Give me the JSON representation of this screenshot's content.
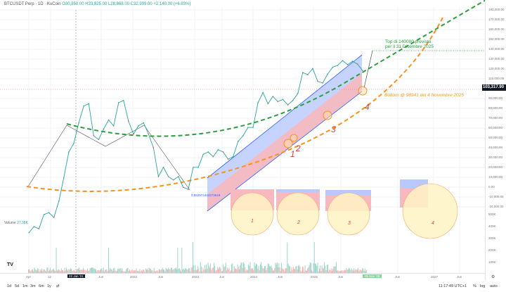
{
  "header": {
    "symbol": "BTCUSDT Perp · 1D · KuCoin",
    "open": "O30,850.00",
    "high": "H33,825.00",
    "low": "L28,868.00",
    "close": "C32,999.00",
    "change": "+2,140.00 (+6.93%)"
  },
  "volume": {
    "label": "Volume",
    "value": "27.38K"
  },
  "price_axis": {
    "labels": [
      "180,000.00",
      "170,000.00",
      "160,000.00",
      "150,000.00",
      "140,000.00",
      "130,000.00",
      "120,000.00",
      "110,000.00",
      "90,000.00",
      "80,000.00",
      "70,000.00",
      "60,000.00",
      "50,000.00",
      "40,000.00",
      "30,000.00",
      "20,000.00",
      "10,000.00",
      "0.00",
      "-10,000.00",
      "-20,000.00"
    ],
    "current_price": "103,317.90",
    "volume_labels": [
      "500K",
      "400K",
      "300K",
      "200K",
      "100K"
    ]
  },
  "time_axis": {
    "labels": [
      "Apr",
      "12",
      "Jun",
      "2022",
      "Jun",
      "2023",
      "Jun",
      "2024",
      "Jun",
      "2025",
      "Jun",
      "Jun",
      "2027",
      "Jun"
    ],
    "crosshair_date": "22 Jan '21",
    "current_date": "05 Nov '25"
  },
  "annotations": {
    "top_line1": "Top di 140000 previsto",
    "top_line2": "per il 31 Dicembre 2025",
    "bottom": "Bottom @ 98941 del 4 Novembre 2025",
    "fib_value": "0.952974444273618",
    "waves": [
      "1",
      "2",
      "3",
      "4"
    ],
    "inset_labels": [
      "1",
      "2",
      "3",
      "4"
    ]
  },
  "toolbar": {
    "ranges": [
      "1d",
      "5d",
      "1m",
      "3m",
      "6m",
      "1y"
    ],
    "time": "11:17:49 UTC+1",
    "percent": "%",
    "log": "log",
    "auto": "auto"
  },
  "colors": {
    "up": "#26a69a",
    "down": "#ef5350",
    "green_curve": "#2e9e3e",
    "orange_curve": "#f7931a",
    "channel_blue": "#2962ff",
    "wave_label": "#e53935"
  },
  "chart_data": {
    "type": "line",
    "series": [
      {
        "x": [
          "2020-04",
          "2020-05",
          "2020-06",
          "2020-07",
          "2020-08",
          "2020-09",
          "2020-10",
          "2020-11",
          "2020-12",
          "2021-01",
          "2021-02",
          "2021-03",
          "2021-04",
          "2021-05",
          "2021-06",
          "2021-07",
          "2021-08",
          "2021-09",
          "2021-10",
          "2021-11",
          "2021-12",
          "2022-01",
          "2022-02",
          "2022-03",
          "2022-04",
          "2022-05",
          "2022-06",
          "2022-07",
          "2022-08",
          "2022-09",
          "2022-10",
          "2022-11",
          "2022-12",
          "2023-01",
          "2023-02",
          "2023-03",
          "2023-04",
          "2023-05",
          "2023-06",
          "2023-07",
          "2023-08",
          "2023-09",
          "2023-10",
          "2023-11",
          "2023-12",
          "2024-01",
          "2024-02",
          "2024-03",
          "2024-04",
          "2024-05",
          "2024-06",
          "2024-07",
          "2024-08",
          "2024-09",
          "2024-10",
          "2024-11",
          "2024-12",
          "2025-01",
          "2025-02",
          "2025-03",
          "2025-04",
          "2025-05",
          "2025-06",
          "2025-07",
          "2025-08",
          "2025-09",
          "2025-10",
          "2025-11"
        ],
        "values": [
          8600,
          9400,
          9100,
          11300,
          11600,
          10800,
          13800,
          19700,
          29000,
          33000,
          45000,
          58000,
          60000,
          37000,
          35000,
          41000,
          47000,
          43000,
          61000,
          63000,
          46000,
          38000,
          43000,
          45000,
          38000,
          31000,
          20000,
          23000,
          20000,
          19000,
          20000,
          17000,
          16500,
          23000,
          23000,
          28000,
          29000,
          27000,
          30000,
          29000,
          26000,
          27000,
          34000,
          37000,
          42000,
          42000,
          61000,
          71000,
          60000,
          67000,
          62000,
          64000,
          59000,
          63000,
          70000,
          96000,
          93000,
          102000,
          84000,
          82000,
          94000,
          104000,
          107000,
          115000,
          108000,
          114000,
          109000,
          99000
        ]
      }
    ]
  }
}
